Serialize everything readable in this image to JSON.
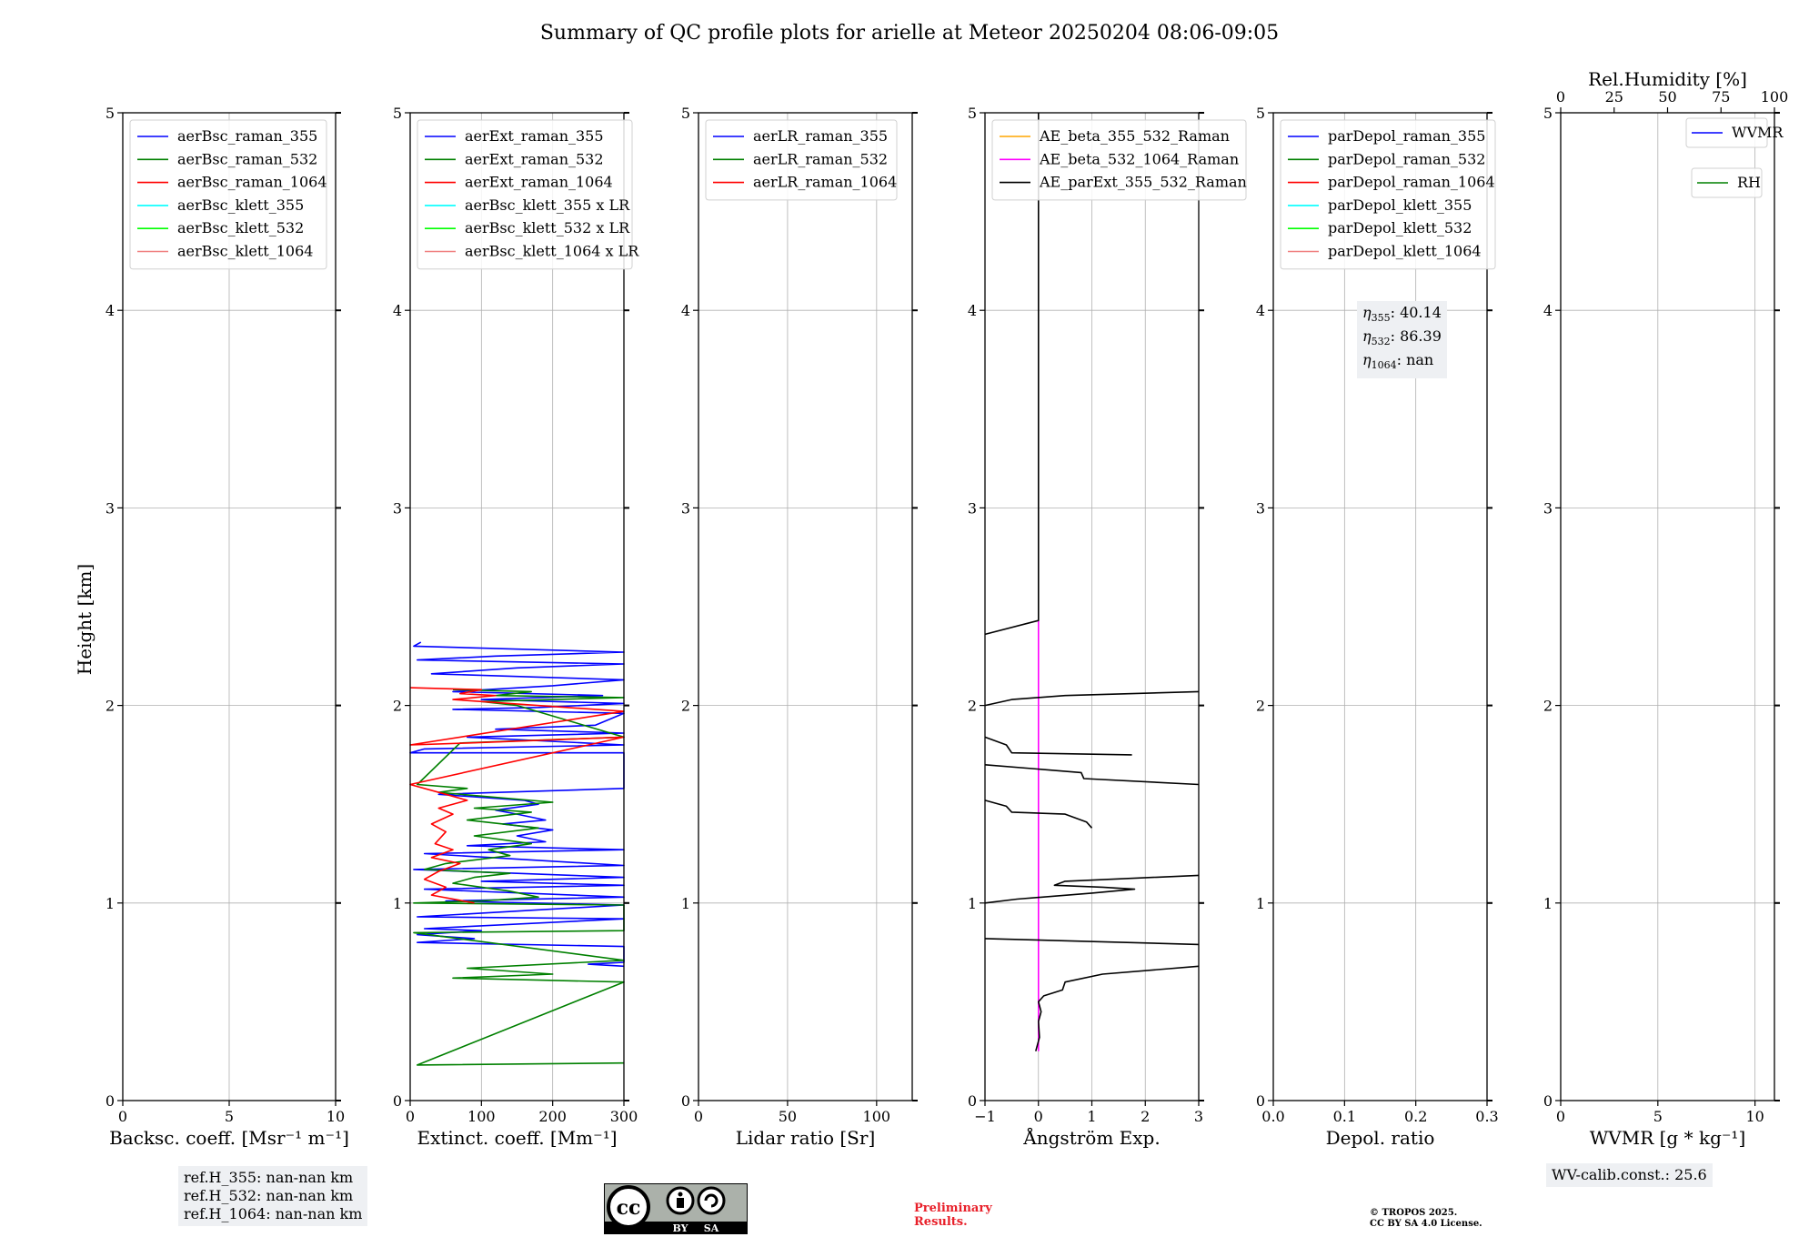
{
  "title": "Summary of QC profile plots for arielle at Meteor 20250204 08:06-09:05",
  "y_axis_label": "Height [km]",
  "colors": {
    "blue": "#0000ff",
    "green": "#008000",
    "red": "#ff0000",
    "cyan": "#00ffff",
    "lime": "#00ff00",
    "salmon": "#f08080",
    "orange": "#ffa500",
    "magenta": "#ff00ff",
    "black": "#000000"
  },
  "chart_data": [
    {
      "type": "line",
      "id": "backscatter",
      "xlabel": "Backsc. coeff. [Msr⁻¹ m⁻¹]",
      "ylabel": "Height [km]",
      "xlim": [
        0,
        10
      ],
      "ylim": [
        0,
        5
      ],
      "xticks": [
        0,
        5,
        10
      ],
      "yticks": [
        0,
        1,
        2,
        3,
        4,
        5
      ],
      "legend_position": "top-left",
      "series": [
        {
          "name": "aerBsc_raman_355",
          "color": "blue",
          "points": []
        },
        {
          "name": "aerBsc_raman_532",
          "color": "green",
          "points": []
        },
        {
          "name": "aerBsc_raman_1064",
          "color": "red",
          "points": []
        },
        {
          "name": "aerBsc_klett_355",
          "color": "cyan",
          "points": []
        },
        {
          "name": "aerBsc_klett_532",
          "color": "lime",
          "points": []
        },
        {
          "name": "aerBsc_klett_1064",
          "color": "salmon",
          "points": []
        }
      ]
    },
    {
      "type": "line",
      "id": "extinction",
      "xlabel": "Extinct. coeff. [Mm⁻¹]",
      "xlim": [
        0,
        300
      ],
      "ylim": [
        0,
        5
      ],
      "xticks": [
        0,
        100,
        200,
        300
      ],
      "yticks": [
        0,
        1,
        2,
        3,
        4,
        5
      ],
      "legend_position": "top-left",
      "series": [
        {
          "name": "aerExt_raman_355",
          "color": "blue",
          "points": [
            [
              15,
              2.32
            ],
            [
              5,
              2.3
            ],
            [
              300,
              2.27
            ],
            [
              120,
              2.25
            ],
            [
              10,
              2.23
            ],
            [
              300,
              2.21
            ],
            [
              150,
              2.19
            ],
            [
              30,
              2.16
            ],
            [
              300,
              2.13
            ],
            [
              200,
              2.1
            ],
            [
              60,
              2.07
            ],
            [
              270,
              2.05
            ],
            [
              100,
              2.03
            ],
            [
              300,
              2.01
            ],
            [
              180,
              1.99
            ],
            [
              60,
              1.98
            ],
            [
              300,
              1.96
            ],
            [
              260,
              1.9
            ],
            [
              120,
              1.88
            ],
            [
              300,
              1.86
            ],
            [
              80,
              1.84
            ],
            [
              300,
              1.8
            ],
            [
              20,
              1.78
            ],
            [
              0,
              1.76
            ],
            [
              300,
              1.76
            ],
            [
              300,
              1.58
            ],
            [
              40,
              1.55
            ],
            [
              160,
              1.52
            ],
            [
              180,
              1.5
            ],
            [
              120,
              1.47
            ],
            [
              150,
              1.45
            ],
            [
              190,
              1.42
            ],
            [
              130,
              1.4
            ],
            [
              200,
              1.37
            ],
            [
              150,
              1.34
            ],
            [
              190,
              1.31
            ],
            [
              80,
              1.29
            ],
            [
              300,
              1.27
            ],
            [
              20,
              1.25
            ],
            [
              300,
              1.19
            ],
            [
              5,
              1.17
            ],
            [
              300,
              1.13
            ],
            [
              100,
              1.11
            ],
            [
              300,
              1.09
            ],
            [
              20,
              1.07
            ],
            [
              300,
              1.03
            ],
            [
              50,
              1.01
            ],
            [
              300,
              0.99
            ],
            [
              10,
              0.93
            ],
            [
              300,
              0.92
            ],
            [
              20,
              0.87
            ],
            [
              100,
              0.86
            ],
            [
              10,
              0.84
            ],
            [
              90,
              0.82
            ],
            [
              10,
              0.8
            ],
            [
              300,
              0.78
            ],
            [
              300,
              0.7
            ],
            [
              250,
              0.69
            ],
            [
              300,
              0.68
            ]
          ]
        },
        {
          "name": "aerExt_raman_532",
          "color": "green",
          "points": [
            [
              60,
              2.08
            ],
            [
              170,
              2.07
            ],
            [
              120,
              2.05
            ],
            [
              300,
              2.04
            ],
            [
              100,
              2.02
            ],
            [
              150,
              2.0
            ],
            [
              300,
              1.84
            ],
            [
              70,
              1.81
            ],
            [
              10,
              1.6
            ],
            [
              80,
              1.58
            ],
            [
              40,
              1.56
            ],
            [
              200,
              1.51
            ],
            [
              90,
              1.48
            ],
            [
              170,
              1.46
            ],
            [
              80,
              1.42
            ],
            [
              180,
              1.38
            ],
            [
              90,
              1.34
            ],
            [
              170,
              1.3
            ],
            [
              110,
              1.27
            ],
            [
              140,
              1.24
            ],
            [
              50,
              1.2
            ],
            [
              20,
              1.17
            ],
            [
              140,
              1.15
            ],
            [
              90,
              1.13
            ],
            [
              60,
              1.1
            ],
            [
              140,
              1.06
            ],
            [
              180,
              1.03
            ],
            [
              100,
              1.01
            ],
            [
              5,
              1.0
            ],
            [
              300,
              0.99
            ],
            [
              300,
              0.86
            ],
            [
              5,
              0.85
            ],
            [
              300,
              0.71
            ],
            [
              80,
              0.67
            ],
            [
              200,
              0.64
            ],
            [
              60,
              0.62
            ],
            [
              300,
              0.6
            ],
            [
              10,
              0.18
            ],
            [
              300,
              0.19
            ]
          ]
        },
        {
          "name": "aerExt_raman_1064",
          "color": "red",
          "points": [
            [
              0,
              2.09
            ],
            [
              100,
              2.08
            ],
            [
              70,
              2.06
            ],
            [
              120,
              2.05
            ],
            [
              60,
              2.03
            ],
            [
              300,
              1.97
            ],
            [
              0,
              1.8
            ],
            [
              80,
              1.81
            ],
            [
              300,
              1.84
            ],
            [
              0,
              1.6
            ],
            [
              50,
              1.55
            ],
            [
              80,
              1.52
            ],
            [
              40,
              1.48
            ],
            [
              60,
              1.45
            ],
            [
              30,
              1.4
            ],
            [
              50,
              1.36
            ],
            [
              35,
              1.3
            ],
            [
              60,
              1.27
            ],
            [
              30,
              1.23
            ],
            [
              70,
              1.2
            ],
            [
              40,
              1.16
            ],
            [
              20,
              1.12
            ],
            [
              50,
              1.08
            ],
            [
              30,
              1.04
            ],
            [
              90,
              1.0
            ]
          ]
        },
        {
          "name": "aerBsc_klett_355 x LR",
          "color": "cyan",
          "points": []
        },
        {
          "name": "aerBsc_klett_532 x LR",
          "color": "lime",
          "points": []
        },
        {
          "name": "aerBsc_klett_1064 x LR",
          "color": "salmon",
          "points": []
        }
      ]
    },
    {
      "type": "line",
      "id": "lidarratio",
      "xlabel": "Lidar ratio [Sr]",
      "xlim": [
        0,
        120
      ],
      "ylim": [
        0,
        5
      ],
      "xticks": [
        0,
        50,
        100
      ],
      "yticks": [
        0,
        1,
        2,
        3,
        4,
        5
      ],
      "legend_position": "top-left",
      "series": [
        {
          "name": "aerLR_raman_355",
          "color": "blue",
          "points": []
        },
        {
          "name": "aerLR_raman_532",
          "color": "green",
          "points": []
        },
        {
          "name": "aerLR_raman_1064",
          "color": "red",
          "points": []
        }
      ]
    },
    {
      "type": "line",
      "id": "angstrom",
      "xlabel": "Ångström Exp.",
      "xlim": [
        -1,
        3
      ],
      "ylim": [
        0,
        5
      ],
      "xticks": [
        -1,
        0,
        1,
        2,
        3
      ],
      "xtick_labels": [
        "−1",
        "0",
        "1",
        "2",
        "3"
      ],
      "yticks": [
        0,
        1,
        2,
        3,
        4,
        5
      ],
      "legend_position": "top-left",
      "series": [
        {
          "name": "AE_beta_355_532_Raman",
          "color": "orange",
          "points": []
        },
        {
          "name": "AE_beta_532_1064_Raman",
          "color": "magenta",
          "points": [
            [
              0,
              0.25
            ],
            [
              0,
              2.43
            ]
          ]
        },
        {
          "name": "AE_parExt_355_532_Raman",
          "color": "black",
          "points": [
            [
              0,
              5.0
            ],
            [
              0,
              2.43
            ],
            [
              -1,
              2.36
            ]
          ],
          "extra_segments": [
            [
              [
                -1,
                2.0
              ],
              [
                -0.5,
                2.03
              ],
              [
                0.5,
                2.05
              ],
              [
                3,
                2.07
              ]
            ],
            [
              [
                -1,
                1.84
              ],
              [
                -0.6,
                1.8
              ],
              [
                -0.5,
                1.76
              ],
              [
                1.75,
                1.75
              ]
            ],
            [
              [
                -1,
                1.7
              ],
              [
                0.8,
                1.66
              ],
              [
                0.85,
                1.63
              ],
              [
                3,
                1.6
              ]
            ],
            [
              [
                -1,
                1.52
              ],
              [
                -0.6,
                1.49
              ],
              [
                -0.5,
                1.46
              ],
              [
                0.5,
                1.45
              ],
              [
                0.9,
                1.41
              ],
              [
                1,
                1.38
              ]
            ],
            [
              [
                -1,
                1.0
              ],
              [
                -0.4,
                1.02
              ],
              [
                1.0,
                1.05
              ],
              [
                1.8,
                1.07
              ],
              [
                1.2,
                1.08
              ],
              [
                0.3,
                1.09
              ],
              [
                0.5,
                1.11
              ],
              [
                3,
                1.14
              ]
            ],
            [
              [
                -1,
                0.82
              ],
              [
                3,
                0.79
              ]
            ],
            [
              [
                3,
                0.68
              ],
              [
                1.2,
                0.64
              ],
              [
                0.5,
                0.6
              ],
              [
                0.45,
                0.56
              ],
              [
                0.1,
                0.53
              ],
              [
                0,
                0.5
              ],
              [
                0.05,
                0.45
              ],
              [
                0,
                0.4
              ],
              [
                0.02,
                0.32
              ],
              [
                -0.05,
                0.25
              ]
            ]
          ]
        }
      ]
    },
    {
      "type": "line",
      "id": "depol",
      "xlabel": "Depol. ratio",
      "xlim": [
        0,
        0.3
      ],
      "ylim": [
        0,
        5
      ],
      "xticks": [
        0,
        0.1,
        0.2,
        0.3
      ],
      "xtick_labels": [
        "0.0",
        "0.1",
        "0.2",
        "0.3"
      ],
      "yticks": [
        0,
        1,
        2,
        3,
        4,
        5
      ],
      "legend_position": "top-left",
      "series": [
        {
          "name": "parDepol_raman_355",
          "color": "blue",
          "points": []
        },
        {
          "name": "parDepol_raman_532",
          "color": "green",
          "points": []
        },
        {
          "name": "parDepol_raman_1064",
          "color": "red",
          "points": []
        },
        {
          "name": "parDepol_klett_355",
          "color": "cyan",
          "points": []
        },
        {
          "name": "parDepol_klett_532",
          "color": "lime",
          "points": []
        },
        {
          "name": "parDepol_klett_1064",
          "color": "salmon",
          "points": []
        }
      ]
    },
    {
      "type": "line",
      "id": "wvmr",
      "xlabel": "WVMR [g * kg⁻¹]",
      "xlim": [
        0,
        11
      ],
      "ylim": [
        0,
        5
      ],
      "xticks": [
        0,
        5,
        10
      ],
      "yticks": [
        0,
        1,
        2,
        3,
        4,
        5
      ],
      "top_axis_label": "Rel.Humidity [%]",
      "top_xlim": [
        0,
        100
      ],
      "top_xticks": [
        0,
        25,
        50,
        75,
        100
      ],
      "legend_position": "top-right",
      "series": [
        {
          "name": "WVMR",
          "color": "blue",
          "points": []
        },
        {
          "name": "RH",
          "color": "green",
          "points": []
        }
      ]
    }
  ],
  "eta": {
    "l355": "η",
    "s355": "355",
    "v355": ": 40.14",
    "l532": "η",
    "s532": "532",
    "v532": ": 86.39",
    "l1064": "η",
    "s1064": "1064",
    "v1064": ": nan"
  },
  "ref_heights": [
    "ref.H_355: nan-nan km",
    "ref.H_532: nan-nan km",
    "ref.H_1064: nan-nan km"
  ],
  "wv_calib": "WV-calib.const.: 25.6",
  "preliminary": [
    "Preliminary",
    "Results."
  ],
  "copyright": [
    "© TROPOS 2025.",
    "CC BY SA 4.0 License."
  ],
  "license_badge": {
    "cc": "cc",
    "by": "BY",
    "sa": "SA"
  }
}
